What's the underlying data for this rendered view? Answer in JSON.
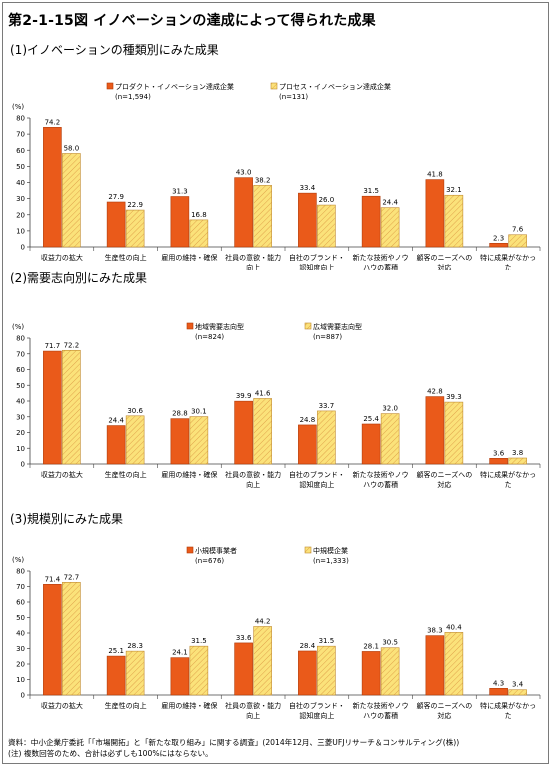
{
  "title": "第2-1-15図 イノベーションの達成によって得られた成果",
  "colors": {
    "series1": "#ea5a1a",
    "series2": "#fbe27a",
    "series2_hatch": "#e0a24a",
    "axis": "#404040"
  },
  "chart_data": [
    {
      "type": "bar",
      "subtitle": "(1)イノベーションの種類別にみた成果",
      "yunit": "(%)",
      "ylim": [
        0,
        80
      ],
      "yticks": [
        0,
        10,
        20,
        30,
        40,
        50,
        60,
        70,
        80
      ],
      "categories": [
        [
          "収益力の拡大"
        ],
        [
          "生産性の向上"
        ],
        [
          "雇用の維持・確保"
        ],
        [
          "社員の意欲・能力",
          "向上"
        ],
        [
          "自社のブランド・",
          "認知度向上"
        ],
        [
          "新たな技術やノウ",
          "ハウの蓄積"
        ],
        [
          "顧客のニーズへの",
          "対応"
        ],
        [
          "特に成果がなかっ",
          "た"
        ]
      ],
      "series": [
        {
          "name": "プロダクト・イノベーション達成企業",
          "n": "(n=1,594)",
          "values": [
            74.2,
            27.9,
            31.3,
            43.0,
            33.4,
            31.5,
            41.8,
            2.3
          ]
        },
        {
          "name": "プロセス・イノベーション達成企業",
          "n": "(n=131)",
          "values": [
            58.0,
            22.9,
            16.8,
            38.2,
            26.0,
            24.4,
            32.1,
            7.6
          ]
        }
      ]
    },
    {
      "type": "bar",
      "subtitle": "(2)需要志向別にみた成果",
      "yunit": "(%)",
      "ylim": [
        0,
        80
      ],
      "yticks": [
        0,
        10,
        20,
        30,
        40,
        50,
        60,
        70,
        80
      ],
      "categories": [
        [
          "収益力の拡大"
        ],
        [
          "生産性の向上"
        ],
        [
          "雇用の維持・確保"
        ],
        [
          "社員の意欲・能力",
          "向上"
        ],
        [
          "自社のブランド・",
          "認知度向上"
        ],
        [
          "新たな技術やノウ",
          "ハウの蓄積"
        ],
        [
          "顧客のニーズへの",
          "対応"
        ],
        [
          "特に成果がなかっ",
          "た"
        ]
      ],
      "series": [
        {
          "name": "地域需要志向型",
          "n": "(n=824)",
          "values": [
            71.7,
            24.4,
            28.8,
            39.9,
            24.8,
            25.4,
            42.8,
            3.6
          ]
        },
        {
          "name": "広域需要志向型",
          "n": "(n=887)",
          "values": [
            72.2,
            30.6,
            30.1,
            41.6,
            33.7,
            32.0,
            39.3,
            3.8
          ]
        }
      ]
    },
    {
      "type": "bar",
      "subtitle": "(3)規模別にみた成果",
      "yunit": "(%)",
      "ylim": [
        0,
        80
      ],
      "yticks": [
        0,
        10,
        20,
        30,
        40,
        50,
        60,
        70,
        80
      ],
      "categories": [
        [
          "収益力の拡大"
        ],
        [
          "生産性の向上"
        ],
        [
          "雇用の維持・確保"
        ],
        [
          "社員の意欲・能力",
          "向上"
        ],
        [
          "自社のブランド・",
          "認知度向上"
        ],
        [
          "新たな技術やノウ",
          "ハウの蓄積"
        ],
        [
          "顧客のニーズへの",
          "対応"
        ],
        [
          "特に成果がなかっ",
          "た"
        ]
      ],
      "series": [
        {
          "name": "小規模事業者",
          "n": "(n=676)",
          "values": [
            71.4,
            25.1,
            24.1,
            33.6,
            28.4,
            28.1,
            38.3,
            4.3
          ]
        },
        {
          "name": "中規模企業",
          "n": "(n=1,333)",
          "values": [
            72.7,
            28.3,
            31.5,
            44.2,
            31.5,
            30.5,
            40.4,
            3.4
          ]
        }
      ]
    }
  ],
  "source": {
    "line1": "資料：中小企業庁委託「「市場開拓」と「新たな取り組み」に関する調査」(2014年12月、三菱UFJリサーチ＆コンサルティング(株))",
    "line2": "(注) 複数回答のため、合計は必ずしも100%にはならない。"
  }
}
